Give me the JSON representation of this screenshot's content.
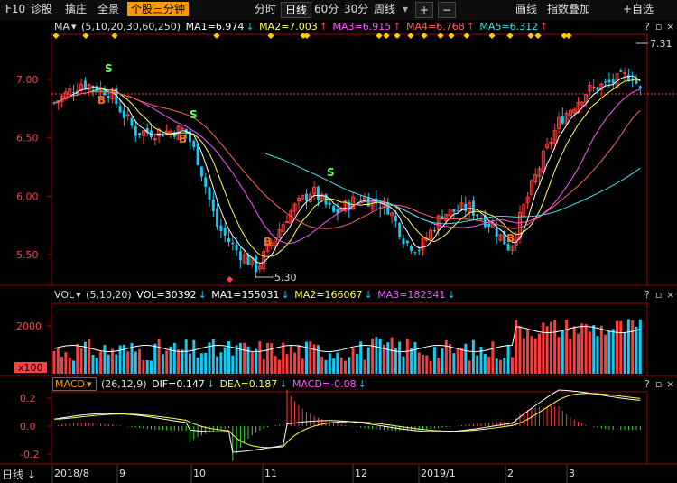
{
  "toolbar": {
    "f10": "F10",
    "items": [
      "诊股",
      "擒庄",
      "全景",
      "个股三分钟"
    ],
    "periods": [
      "分时",
      "日线",
      "60分",
      "30分",
      "周线"
    ],
    "plus": "+",
    "minus": "−",
    "right": [
      "画线",
      "指数叠加",
      "+自选"
    ]
  },
  "ma_bar": {
    "name": "MA",
    "params": "(5,10,20,30,60,250)",
    "ma1": "MA1=6.974",
    "ma2": "MA2=7.003",
    "ma3": "MA3=6.915",
    "ma4": "MA4=6.768",
    "ma5": "MA5=6.312"
  },
  "vol_bar": {
    "name": "VOL",
    "params": "(5,10,20)",
    "vol": "VOL=30392",
    "ma1": "MA1=155031",
    "ma2": "MA2=166067",
    "ma3": "MA3=182341"
  },
  "macd_bar": {
    "name": "MACD",
    "params": "(26,12,9)",
    "dif": "DIF=0.147",
    "dea": "DEA=0.187",
    "macd": "MACD=-0.08"
  },
  "price_axis": [
    "7.00",
    "6.50",
    "6.00",
    "5.50"
  ],
  "vol_axis": [
    "2000",
    "x100"
  ],
  "macd_axis": [
    "0.2",
    "0.0",
    "-0.2"
  ],
  "markers": {
    "high": "7.31",
    "low": "5.30",
    "buy": "B",
    "sell": "S"
  },
  "x_axis": [
    "2018/8",
    "9",
    "10",
    "11",
    "12",
    "2019/1",
    "2",
    "3"
  ],
  "bottom_button": "日线 ↓",
  "colors": {
    "up": "#ff3c3c",
    "down": "#19c8f0",
    "ma1": "#ffffff",
    "ma2": "#ffff55",
    "ma3": "#ff55ff",
    "ma4": "#ff6060",
    "ma5": "#40e0e0",
    "axis": "#a00000"
  }
}
